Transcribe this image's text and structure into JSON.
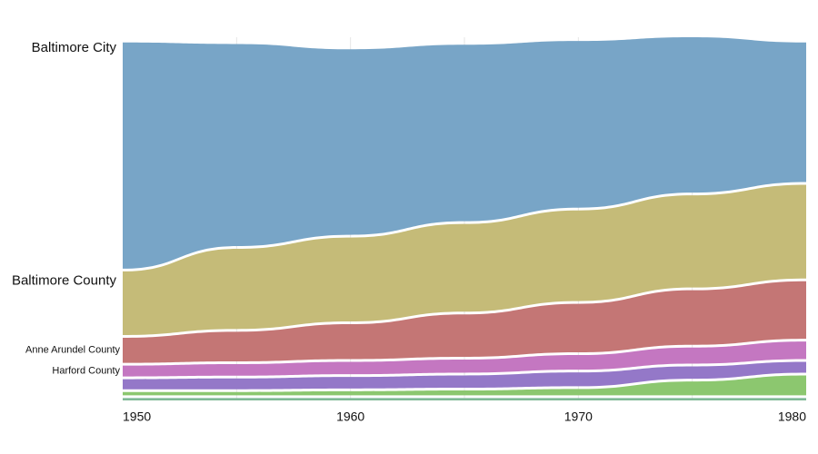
{
  "chart_data": {
    "type": "area",
    "title": "",
    "xlabel": "",
    "ylabel": "",
    "stacked": true,
    "x": [
      1950,
      1955,
      1960,
      1965,
      1970,
      1975,
      1980
    ],
    "xticks": [
      "1950",
      "1960",
      "1970",
      "1980"
    ],
    "legend": "left-labels",
    "grid": true,
    "series": [
      {
        "name": "",
        "color": "#7fb896",
        "values": [
          5,
          5,
          5,
          5,
          5,
          5,
          5
        ]
      },
      {
        "name": "",
        "color": "#8cc76f",
        "values": [
          8,
          8,
          9,
          10,
          12,
          22,
          30
        ]
      },
      {
        "name": "",
        "color": "#9478c8",
        "values": [
          17,
          18,
          19,
          20,
          22,
          20,
          18
        ]
      },
      {
        "name": "Harford County",
        "color": "#c477c1",
        "values": [
          18,
          19,
          20,
          21,
          23,
          25,
          27
        ]
      },
      {
        "name": "Anne Arundel County",
        "color": "#c47675",
        "values": [
          37,
          43,
          50,
          60,
          68,
          76,
          80
        ]
      },
      {
        "name": "Baltimore County",
        "color": "#c5bb78",
        "values": [
          88,
          110,
          115,
          120,
          124,
          126,
          128
        ]
      },
      {
        "name": "Baltimore City",
        "color": "#78a5c7",
        "values": [
          302,
          270,
          248,
          236,
          223,
          208,
          187
        ]
      }
    ]
  }
}
